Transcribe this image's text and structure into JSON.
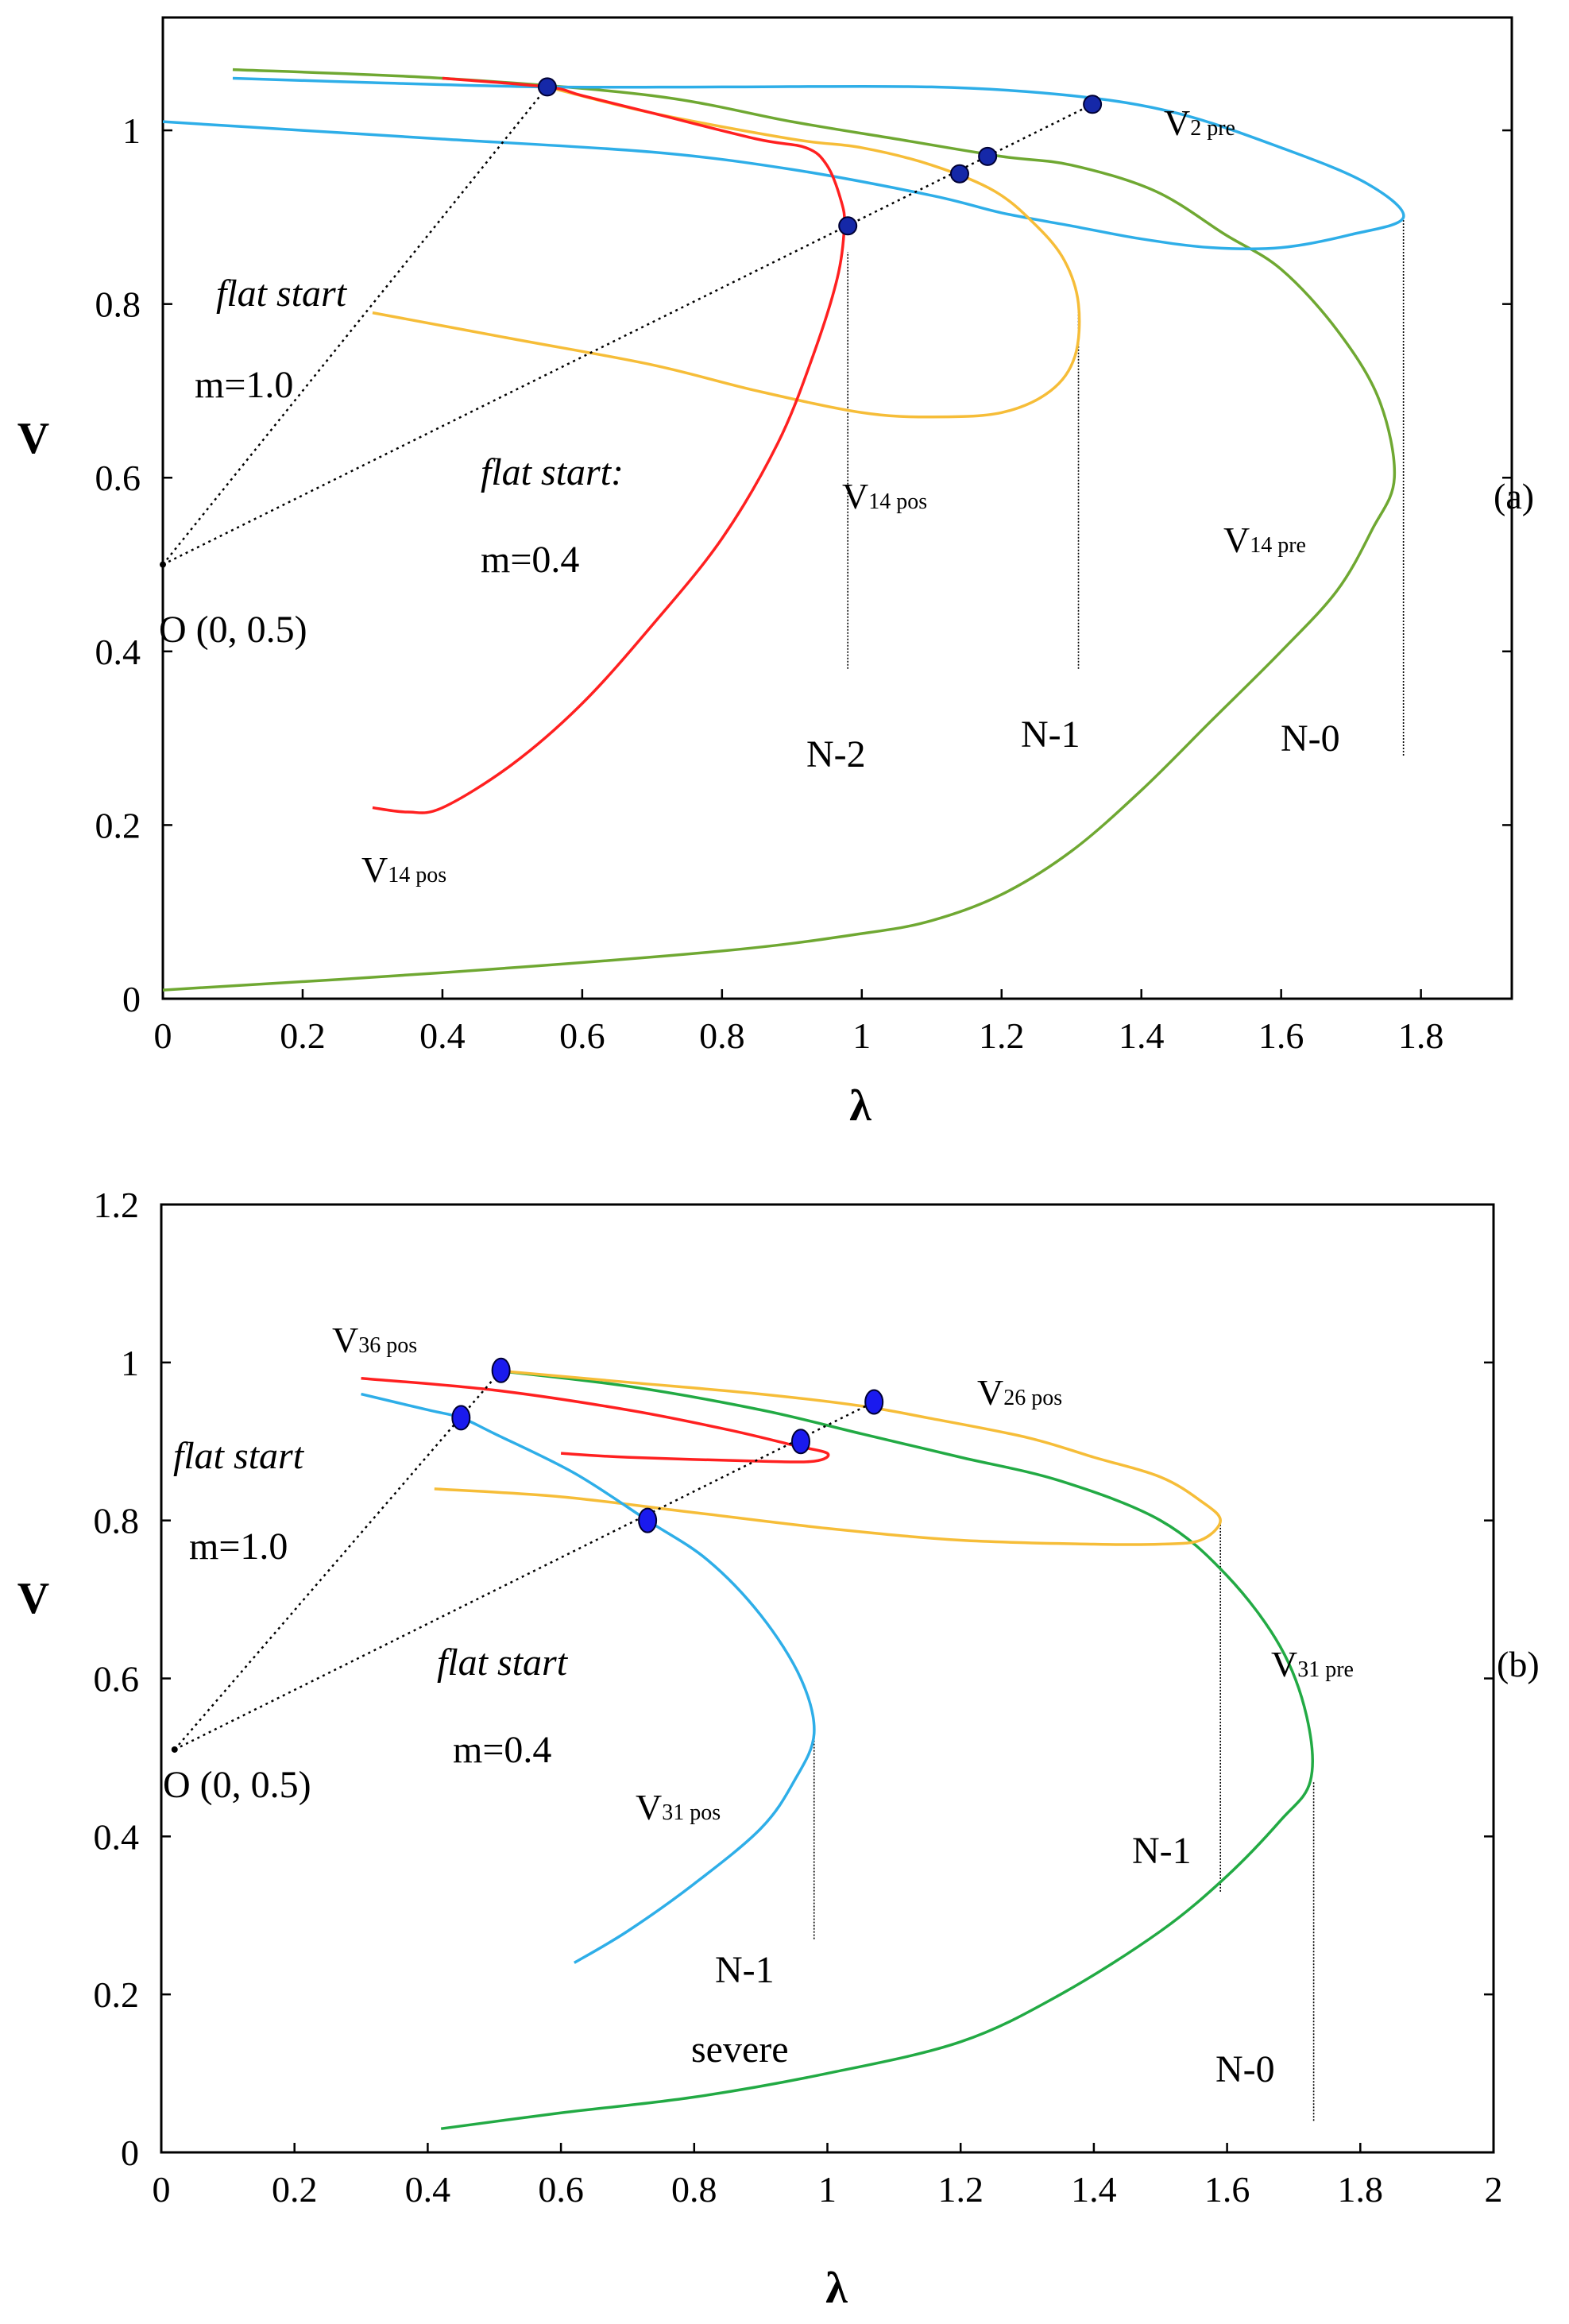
{
  "chart_data": [
    {
      "type": "line",
      "panel_label": "(a)",
      "xlabel": "λ",
      "ylabel": "V",
      "xlim": [
        0,
        1.93
      ],
      "ylim": [
        0,
        1.13
      ],
      "x_ticks": [
        0,
        0.2,
        0.4,
        0.6,
        0.8,
        1,
        1.2,
        1.4,
        1.6,
        1.8
      ],
      "x_tick_labels": [
        "0",
        "0.2",
        "0.4",
        "0.6",
        "0.8",
        "1",
        "1.2",
        "1.4",
        "1.6",
        "1.8"
      ],
      "y_ticks": [
        0,
        0.2,
        0.4,
        0.6,
        0.8,
        1
      ],
      "y_tick_labels": [
        "0",
        "0.2",
        "0.4",
        "0.6",
        "0.8",
        "1"
      ],
      "series": [
        {
          "name": "N-0 (green)",
          "color": "#6fa832",
          "points": [
            [
              0.0,
              0.01
            ],
            [
              0.4,
              0.03
            ],
            [
              0.8,
              0.055
            ],
            [
              1.0,
              0.075
            ],
            [
              1.1,
              0.09
            ],
            [
              1.2,
              0.12
            ],
            [
              1.3,
              0.17
            ],
            [
              1.4,
              0.24
            ],
            [
              1.5,
              0.32
            ],
            [
              1.6,
              0.4
            ],
            [
              1.68,
              0.47
            ],
            [
              1.73,
              0.54
            ],
            [
              1.762,
              0.6
            ],
            [
              1.74,
              0.69
            ],
            [
              1.68,
              0.77
            ],
            [
              1.6,
              0.84
            ],
            [
              1.52,
              0.88
            ],
            [
              1.42,
              0.93
            ],
            [
              1.3,
              0.96
            ],
            [
              1.2,
              0.97
            ],
            [
              1.05,
              0.99
            ],
            [
              0.9,
              1.01
            ],
            [
              0.7,
              1.04
            ],
            [
              0.4,
              1.06
            ],
            [
              0.1,
              1.07
            ]
          ]
        },
        {
          "name": "N-0 (blue)",
          "color": "#2eaee8",
          "points": [
            [
              0.1,
              1.06
            ],
            [
              0.3,
              1.055
            ],
            [
              0.55,
              1.05
            ],
            [
              0.8,
              1.05
            ],
            [
              1.1,
              1.05
            ],
            [
              1.3,
              1.04
            ],
            [
              1.45,
              1.02
            ],
            [
              1.6,
              0.98
            ],
            [
              1.72,
              0.94
            ],
            [
              1.775,
              0.9
            ],
            [
              1.7,
              0.88
            ],
            [
              1.6,
              0.865
            ],
            [
              1.5,
              0.865
            ],
            [
              1.4,
              0.875
            ],
            [
              1.3,
              0.89
            ],
            [
              1.2,
              0.905
            ],
            [
              1.1,
              0.925
            ],
            [
              0.9,
              0.955
            ],
            [
              0.7,
              0.975
            ],
            [
              0.4,
              0.99
            ],
            [
              0.2,
              1.0
            ],
            [
              0.0,
              1.01
            ]
          ]
        },
        {
          "name": "N-1 (yellow)",
          "color": "#f6bd38",
          "points": [
            [
              0.3,
              0.79
            ],
            [
              0.5,
              0.76
            ],
            [
              0.7,
              0.73
            ],
            [
              0.85,
              0.7
            ],
            [
              1.0,
              0.675
            ],
            [
              1.1,
              0.67
            ],
            [
              1.2,
              0.675
            ],
            [
              1.27,
              0.7
            ],
            [
              1.305,
              0.74
            ],
            [
              1.31,
              0.8
            ],
            [
              1.29,
              0.85
            ],
            [
              1.25,
              0.89
            ],
            [
              1.19,
              0.93
            ],
            [
              1.1,
              0.96
            ],
            [
              1.0,
              0.98
            ],
            [
              0.9,
              0.99
            ],
            [
              0.7,
              1.02
            ],
            [
              0.55,
              1.05
            ]
          ]
        },
        {
          "name": "N-2 (red)",
          "color": "#ff2020",
          "points": [
            [
              0.3,
              0.22
            ],
            [
              0.35,
              0.215
            ],
            [
              0.4,
              0.22
            ],
            [
              0.5,
              0.27
            ],
            [
              0.6,
              0.34
            ],
            [
              0.7,
              0.43
            ],
            [
              0.8,
              0.53
            ],
            [
              0.88,
              0.64
            ],
            [
              0.93,
              0.74
            ],
            [
              0.965,
              0.83
            ],
            [
              0.975,
              0.89
            ],
            [
              0.97,
              0.92
            ],
            [
              0.95,
              0.96
            ],
            [
              0.92,
              0.98
            ],
            [
              0.85,
              0.99
            ],
            [
              0.7,
              1.02
            ],
            [
              0.6,
              1.04
            ],
            [
              0.55,
              1.05
            ],
            [
              0.4,
              1.06
            ]
          ]
        }
      ],
      "markers": [
        [
          0.55,
          1.05
        ],
        [
          0.98,
          0.89
        ],
        [
          1.14,
          0.95
        ],
        [
          1.18,
          0.97
        ],
        [
          1.33,
          1.03
        ]
      ],
      "origin": [
        0,
        0.5
      ],
      "rays": [
        [
          [
            0,
            0.5
          ],
          [
            0.55,
            1.05
          ]
        ],
        [
          [
            0,
            0.5
          ],
          [
            1.33,
            1.03
          ]
        ]
      ],
      "vertical_lines": [
        {
          "x": 0.98,
          "y1": 0.38,
          "y2": 0.86
        },
        {
          "x": 1.31,
          "y1": 0.38,
          "y2": 0.8
        },
        {
          "x": 1.775,
          "y1": 0.28,
          "y2": 0.9
        }
      ],
      "annotations": {
        "flat_start_1": "flat start",
        "m_1": "m=1.0",
        "flat_start_2": "flat start:",
        "m_2": "m=0.4",
        "origin_label": "O (0, 0.5)",
        "v2pre_main": "V",
        "v2pre_sub": "2 pre",
        "v14pos_mid_main": "V",
        "v14pos_mid_sub": "14 pos",
        "v14pre_main": "V",
        "v14pre_sub": "14 pre",
        "v14pos_low_main": "V",
        "v14pos_low_sub": "14 pos",
        "n2": "N-2",
        "n1": "N-1",
        "n0": "N-0"
      }
    },
    {
      "type": "line",
      "panel_label": "(b)",
      "xlabel": "λ",
      "ylabel": "V",
      "xlim": [
        0,
        2
      ],
      "ylim": [
        0,
        1.2
      ],
      "x_ticks": [
        0,
        0.2,
        0.4,
        0.6,
        0.8,
        1,
        1.2,
        1.4,
        1.6,
        1.8,
        2
      ],
      "x_tick_labels": [
        "0",
        "0.2",
        "0.4",
        "0.6",
        "0.8",
        "1",
        "1.2",
        "1.4",
        "1.6",
        "1.8",
        "2"
      ],
      "y_ticks": [
        0,
        0.2,
        0.4,
        0.6,
        0.8,
        1,
        1.2
      ],
      "y_tick_labels": [
        "0",
        "0.2",
        "0.4",
        "0.6",
        "0.8",
        "1",
        "1.2"
      ],
      "series": [
        {
          "name": "N-0 (green)",
          "color": "#22aa44",
          "points": [
            [
              0.42,
              0.03
            ],
            [
              0.6,
              0.05
            ],
            [
              0.8,
              0.07
            ],
            [
              1.0,
              0.1
            ],
            [
              1.2,
              0.14
            ],
            [
              1.35,
              0.2
            ],
            [
              1.5,
              0.28
            ],
            [
              1.6,
              0.35
            ],
            [
              1.68,
              0.42
            ],
            [
              1.725,
              0.47
            ],
            [
              1.72,
              0.55
            ],
            [
              1.68,
              0.64
            ],
            [
              1.6,
              0.73
            ],
            [
              1.5,
              0.8
            ],
            [
              1.35,
              0.85
            ],
            [
              1.2,
              0.88
            ],
            [
              1.05,
              0.91
            ],
            [
              0.9,
              0.94
            ],
            [
              0.7,
              0.97
            ],
            [
              0.5,
              0.99
            ]
          ]
        },
        {
          "name": "N-1 (yellow)",
          "color": "#f6bd38",
          "points": [
            [
              0.41,
              0.84
            ],
            [
              0.6,
              0.83
            ],
            [
              0.8,
              0.81
            ],
            [
              1.0,
              0.79
            ],
            [
              1.2,
              0.775
            ],
            [
              1.4,
              0.77
            ],
            [
              1.5,
              0.77
            ],
            [
              1.56,
              0.775
            ],
            [
              1.59,
              0.8
            ],
            [
              1.56,
              0.825
            ],
            [
              1.5,
              0.855
            ],
            [
              1.4,
              0.88
            ],
            [
              1.3,
              0.905
            ],
            [
              1.15,
              0.93
            ],
            [
              1.05,
              0.945
            ],
            [
              0.9,
              0.96
            ],
            [
              0.7,
              0.975
            ],
            [
              0.5,
              0.99
            ]
          ]
        },
        {
          "name": "N-1 severe (blue)",
          "color": "#2eaee8",
          "points": [
            [
              0.62,
              0.24
            ],
            [
              0.7,
              0.28
            ],
            [
              0.8,
              0.34
            ],
            [
              0.9,
              0.41
            ],
            [
              0.95,
              0.47
            ],
            [
              0.98,
              0.53
            ],
            [
              0.96,
              0.6
            ],
            [
              0.9,
              0.68
            ],
            [
              0.82,
              0.75
            ],
            [
              0.73,
              0.8
            ],
            [
              0.62,
              0.86
            ],
            [
              0.5,
              0.91
            ],
            [
              0.45,
              0.93
            ],
            [
              0.4,
              0.94
            ],
            [
              0.3,
              0.96
            ]
          ]
        },
        {
          "name": "red",
          "color": "#ff2020",
          "points": [
            [
              0.3,
              0.98
            ],
            [
              0.5,
              0.965
            ],
            [
              0.7,
              0.94
            ],
            [
              0.85,
              0.915
            ],
            [
              0.95,
              0.895
            ],
            [
              1.0,
              0.885
            ],
            [
              0.98,
              0.875
            ],
            [
              0.9,
              0.875
            ],
            [
              0.7,
              0.88
            ],
            [
              0.6,
              0.885
            ]
          ]
        }
      ],
      "markers": [
        [
          0.51,
          0.99
        ],
        [
          0.45,
          0.93
        ],
        [
          0.73,
          0.8
        ],
        [
          0.96,
          0.9
        ],
        [
          1.07,
          0.95
        ]
      ],
      "origin": [
        0.02,
        0.51
      ],
      "rays": [
        [
          [
            0.02,
            0.51
          ],
          [
            0.51,
            0.99
          ]
        ],
        [
          [
            0.02,
            0.51
          ],
          [
            1.07,
            0.95
          ]
        ]
      ],
      "vertical_lines": [
        {
          "x": 0.98,
          "y1": 0.27,
          "y2": 0.53
        },
        {
          "x": 1.59,
          "y1": 0.33,
          "y2": 0.8
        },
        {
          "x": 1.73,
          "y1": 0.04,
          "y2": 0.47
        }
      ],
      "annotations": {
        "flat_start_1": "flat start",
        "m_1": "m=1.0",
        "flat_start_2": "flat start",
        "m_2": "m=0.4",
        "origin_label": "O (0, 0.5)",
        "v36pos_main": "V",
        "v36pos_sub": "36 pos",
        "v26pos_main": "V",
        "v26pos_sub": "26 pos",
        "v31pre_main": "V",
        "v31pre_sub": "31 pre",
        "v31pos_main": "V",
        "v31pos_sub": "31 pos",
        "n1_blue": "N-1",
        "n1_yellow": "N-1",
        "n0": "N-0",
        "severe": "severe"
      }
    }
  ]
}
